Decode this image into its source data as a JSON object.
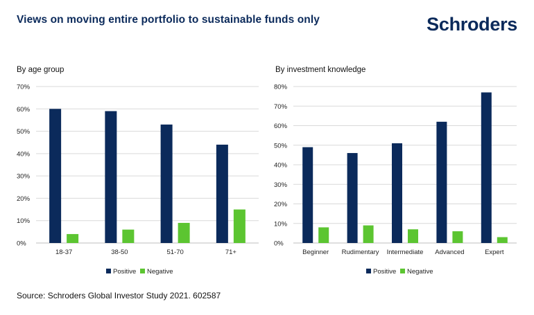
{
  "header": {
    "title": "Views on moving entire portfolio to sustainable funds only",
    "logo_text": "Schroders"
  },
  "colors": {
    "positive": "#0b2a5b",
    "negative": "#5cc531",
    "gridline": "#d9d9d9"
  },
  "footer": {
    "source": "Source: Schroders Global Investor Study 2021. 602587"
  },
  "chart_data": [
    {
      "type": "bar",
      "title": "By age group",
      "categories": [
        "18-37",
        "38-50",
        "51-70",
        "71+"
      ],
      "series": [
        {
          "name": "Positive",
          "values": [
            60,
            59,
            53,
            44
          ]
        },
        {
          "name": "Negative",
          "values": [
            4,
            6,
            9,
            15
          ]
        }
      ],
      "ylim": [
        0,
        70
      ],
      "yticks": [
        "0%",
        "10%",
        "20%",
        "30%",
        "40%",
        "50%",
        "60%",
        "70%"
      ],
      "grid": true,
      "legend_position": "bottom"
    },
    {
      "type": "bar",
      "title": "By investment knowledge",
      "categories": [
        "Beginner",
        "Rudimentary",
        "Intermediate",
        "Advanced",
        "Expert"
      ],
      "series": [
        {
          "name": "Positive",
          "values": [
            49,
            46,
            51,
            62,
            77
          ]
        },
        {
          "name": "Negative",
          "values": [
            8,
            9,
            7,
            6,
            3
          ]
        }
      ],
      "ylim": [
        0,
        80
      ],
      "yticks": [
        "0%",
        "10%",
        "20%",
        "30%",
        "40%",
        "50%",
        "60%",
        "70%",
        "80%"
      ],
      "grid": true,
      "legend_position": "bottom"
    }
  ]
}
